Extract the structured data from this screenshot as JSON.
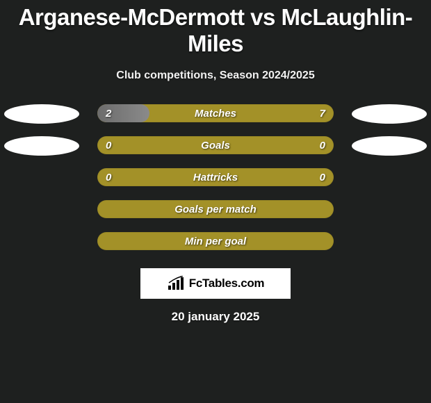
{
  "title": "Arganese-McDermott vs McLaughlin-Miles",
  "subtitle": "Club competitions, Season 2024/2025",
  "date": "20 january 2025",
  "logo_text": "FcTables.com",
  "colors": {
    "background": "#1e201f",
    "bar_bg": "#a39128",
    "bar_left_fill": "#7a7a7a",
    "ellipse": "#ffffff",
    "text": "#ffffff"
  },
  "rows": [
    {
      "label": "Matches",
      "left_val": "2",
      "right_val": "7",
      "left_pct": 22,
      "show_left_ellipse": true,
      "show_right_ellipse": true,
      "show_vals": true
    },
    {
      "label": "Goals",
      "left_val": "0",
      "right_val": "0",
      "left_pct": 0,
      "show_left_ellipse": true,
      "show_right_ellipse": true,
      "show_vals": true
    },
    {
      "label": "Hattricks",
      "left_val": "0",
      "right_val": "0",
      "left_pct": 0,
      "show_left_ellipse": false,
      "show_right_ellipse": false,
      "show_vals": true
    },
    {
      "label": "Goals per match",
      "left_val": "",
      "right_val": "",
      "left_pct": 0,
      "show_left_ellipse": false,
      "show_right_ellipse": false,
      "show_vals": false
    },
    {
      "label": "Min per goal",
      "left_val": "",
      "right_val": "",
      "left_pct": 0,
      "show_left_ellipse": false,
      "show_right_ellipse": false,
      "show_vals": false
    }
  ]
}
